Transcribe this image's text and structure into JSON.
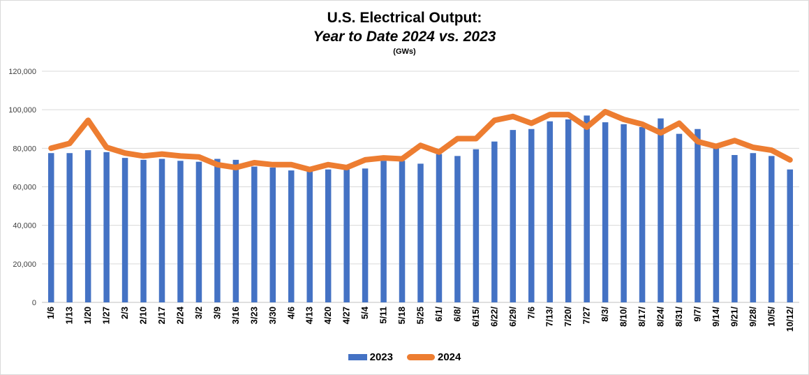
{
  "title": "U.S. Electrical Output:",
  "subtitle": "Year to Date 2024 vs. 2023",
  "units": "(GWs)",
  "colors": {
    "bar": "#4472C4",
    "line": "#ED7D31",
    "grid": "#d9d9d9"
  },
  "chart_data": {
    "type": "bar",
    "title": "U.S. Electrical Output:",
    "subtitle": "Year to Date 2024 vs. 2023",
    "ylabel": "",
    "xlabel": "",
    "ylim": [
      0,
      120000
    ],
    "yticks": [
      "0",
      "20,000",
      "40,000",
      "60,000",
      "80,000",
      "100,000",
      "120,000"
    ],
    "grid": true,
    "legend_position": "bottom",
    "categories": [
      "1/6",
      "1/13",
      "1/20",
      "1/27",
      "2/3",
      "2/10",
      "2/17",
      "2/24",
      "3/2",
      "3/9",
      "3/16",
      "3/23",
      "3/30",
      "4/6",
      "4/13",
      "4/20",
      "4/27",
      "5/4",
      "5/11",
      "5/18",
      "5/25",
      "6/1/",
      "6/8/",
      "6/15/",
      "6/22/",
      "6/29/",
      "7/6",
      "7/13/",
      "7/20/",
      "7/27",
      "8/3/",
      "8/10/",
      "8/17/",
      "8/24/",
      "8/31/",
      "9/7/",
      "9/14/",
      "9/21/",
      "9/28/",
      "10/5/",
      "10/12/"
    ],
    "series": [
      {
        "name": "2023",
        "type": "bar",
        "values": [
          77500,
          77500,
          79000,
          78000,
          75000,
          74000,
          74500,
          73500,
          73000,
          74500,
          74000,
          70500,
          70000,
          68500,
          68000,
          69000,
          69000,
          69500,
          73500,
          73500,
          72000,
          77000,
          76000,
          79500,
          83500,
          89500,
          90000,
          94000,
          95000,
          97000,
          93500,
          92500,
          91000,
          95500,
          87500,
          90000,
          80000,
          76500,
          77500,
          76000,
          69000
        ]
      },
      {
        "name": "2024",
        "type": "line",
        "values": [
          80000,
          82500,
          94500,
          80500,
          77500,
          76000,
          77000,
          76000,
          75500,
          71500,
          70000,
          72500,
          71500,
          71500,
          69000,
          71500,
          70000,
          74000,
          75000,
          74500,
          81500,
          78000,
          85000,
          85000,
          94500,
          96500,
          93000,
          97500,
          97500,
          91000,
          99000,
          95000,
          92500,
          88000,
          93000,
          83500,
          81000,
          84000,
          80500,
          79000,
          74000
        ]
      }
    ]
  }
}
